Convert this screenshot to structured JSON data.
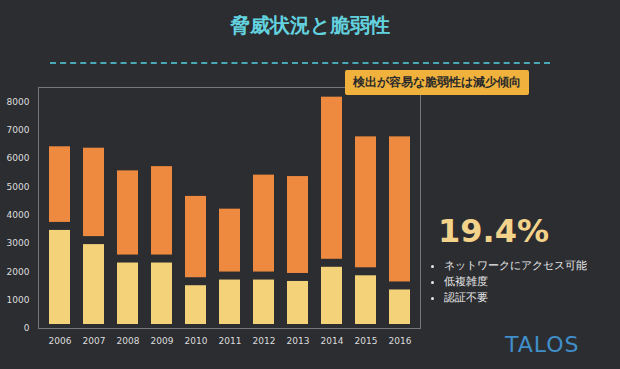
{
  "chart_data": {
    "type": "bar",
    "stacked": true,
    "title": "脅威状況と脆弱性",
    "categories": [
      "2006",
      "2007",
      "2008",
      "2009",
      "2010",
      "2011",
      "2012",
      "2013",
      "2014",
      "2015",
      "2016"
    ],
    "series": [
      {
        "color": "#f3d27a",
        "values": [
          3600,
          3100,
          2450,
          2450,
          1650,
          1850,
          1850,
          1800,
          2300,
          2000,
          1500
        ]
      },
      {
        "color": "#ee8a3f",
        "values": [
          2950,
          3400,
          3250,
          3400,
          3150,
          2500,
          3700,
          3700,
          6000,
          4900,
          5400
        ]
      }
    ],
    "ylim": [
      0,
      8500
    ],
    "yticks": [
      0,
      1000,
      2000,
      3000,
      4000,
      5000,
      6000,
      7000,
      8000
    ],
    "grid": false,
    "annotation": "検出が容易な脆弱性は減少傾向",
    "callout": {
      "label": "19.4%",
      "items": [
        "ネットワークにアクセス可能",
        "低複雑度",
        "認証不要"
      ]
    },
    "logo": "TALOS"
  }
}
